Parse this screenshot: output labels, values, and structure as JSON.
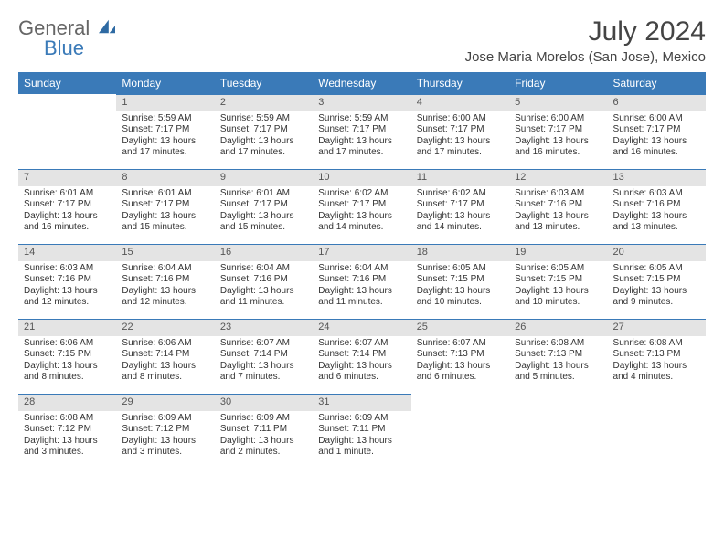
{
  "logo": {
    "part1": "General",
    "part2": "Blue"
  },
  "title": "July 2024",
  "location": "Jose Maria Morelos (San Jose), Mexico",
  "colors": {
    "header_bg": "#3a7ab8",
    "header_text": "#ffffff",
    "daynum_bg": "#e4e4e4",
    "daynum_border": "#3a7ab8",
    "text": "#333333",
    "background": "#ffffff"
  },
  "day_headers": [
    "Sunday",
    "Monday",
    "Tuesday",
    "Wednesday",
    "Thursday",
    "Friday",
    "Saturday"
  ],
  "weeks": [
    [
      null,
      {
        "num": "1",
        "sunrise": "Sunrise: 5:59 AM",
        "sunset": "Sunset: 7:17 PM",
        "daylight": "Daylight: 13 hours and 17 minutes."
      },
      {
        "num": "2",
        "sunrise": "Sunrise: 5:59 AM",
        "sunset": "Sunset: 7:17 PM",
        "daylight": "Daylight: 13 hours and 17 minutes."
      },
      {
        "num": "3",
        "sunrise": "Sunrise: 5:59 AM",
        "sunset": "Sunset: 7:17 PM",
        "daylight": "Daylight: 13 hours and 17 minutes."
      },
      {
        "num": "4",
        "sunrise": "Sunrise: 6:00 AM",
        "sunset": "Sunset: 7:17 PM",
        "daylight": "Daylight: 13 hours and 17 minutes."
      },
      {
        "num": "5",
        "sunrise": "Sunrise: 6:00 AM",
        "sunset": "Sunset: 7:17 PM",
        "daylight": "Daylight: 13 hours and 16 minutes."
      },
      {
        "num": "6",
        "sunrise": "Sunrise: 6:00 AM",
        "sunset": "Sunset: 7:17 PM",
        "daylight": "Daylight: 13 hours and 16 minutes."
      }
    ],
    [
      {
        "num": "7",
        "sunrise": "Sunrise: 6:01 AM",
        "sunset": "Sunset: 7:17 PM",
        "daylight": "Daylight: 13 hours and 16 minutes."
      },
      {
        "num": "8",
        "sunrise": "Sunrise: 6:01 AM",
        "sunset": "Sunset: 7:17 PM",
        "daylight": "Daylight: 13 hours and 15 minutes."
      },
      {
        "num": "9",
        "sunrise": "Sunrise: 6:01 AM",
        "sunset": "Sunset: 7:17 PM",
        "daylight": "Daylight: 13 hours and 15 minutes."
      },
      {
        "num": "10",
        "sunrise": "Sunrise: 6:02 AM",
        "sunset": "Sunset: 7:17 PM",
        "daylight": "Daylight: 13 hours and 14 minutes."
      },
      {
        "num": "11",
        "sunrise": "Sunrise: 6:02 AM",
        "sunset": "Sunset: 7:17 PM",
        "daylight": "Daylight: 13 hours and 14 minutes."
      },
      {
        "num": "12",
        "sunrise": "Sunrise: 6:03 AM",
        "sunset": "Sunset: 7:16 PM",
        "daylight": "Daylight: 13 hours and 13 minutes."
      },
      {
        "num": "13",
        "sunrise": "Sunrise: 6:03 AM",
        "sunset": "Sunset: 7:16 PM",
        "daylight": "Daylight: 13 hours and 13 minutes."
      }
    ],
    [
      {
        "num": "14",
        "sunrise": "Sunrise: 6:03 AM",
        "sunset": "Sunset: 7:16 PM",
        "daylight": "Daylight: 13 hours and 12 minutes."
      },
      {
        "num": "15",
        "sunrise": "Sunrise: 6:04 AM",
        "sunset": "Sunset: 7:16 PM",
        "daylight": "Daylight: 13 hours and 12 minutes."
      },
      {
        "num": "16",
        "sunrise": "Sunrise: 6:04 AM",
        "sunset": "Sunset: 7:16 PM",
        "daylight": "Daylight: 13 hours and 11 minutes."
      },
      {
        "num": "17",
        "sunrise": "Sunrise: 6:04 AM",
        "sunset": "Sunset: 7:16 PM",
        "daylight": "Daylight: 13 hours and 11 minutes."
      },
      {
        "num": "18",
        "sunrise": "Sunrise: 6:05 AM",
        "sunset": "Sunset: 7:15 PM",
        "daylight": "Daylight: 13 hours and 10 minutes."
      },
      {
        "num": "19",
        "sunrise": "Sunrise: 6:05 AM",
        "sunset": "Sunset: 7:15 PM",
        "daylight": "Daylight: 13 hours and 10 minutes."
      },
      {
        "num": "20",
        "sunrise": "Sunrise: 6:05 AM",
        "sunset": "Sunset: 7:15 PM",
        "daylight": "Daylight: 13 hours and 9 minutes."
      }
    ],
    [
      {
        "num": "21",
        "sunrise": "Sunrise: 6:06 AM",
        "sunset": "Sunset: 7:15 PM",
        "daylight": "Daylight: 13 hours and 8 minutes."
      },
      {
        "num": "22",
        "sunrise": "Sunrise: 6:06 AM",
        "sunset": "Sunset: 7:14 PM",
        "daylight": "Daylight: 13 hours and 8 minutes."
      },
      {
        "num": "23",
        "sunrise": "Sunrise: 6:07 AM",
        "sunset": "Sunset: 7:14 PM",
        "daylight": "Daylight: 13 hours and 7 minutes."
      },
      {
        "num": "24",
        "sunrise": "Sunrise: 6:07 AM",
        "sunset": "Sunset: 7:14 PM",
        "daylight": "Daylight: 13 hours and 6 minutes."
      },
      {
        "num": "25",
        "sunrise": "Sunrise: 6:07 AM",
        "sunset": "Sunset: 7:13 PM",
        "daylight": "Daylight: 13 hours and 6 minutes."
      },
      {
        "num": "26",
        "sunrise": "Sunrise: 6:08 AM",
        "sunset": "Sunset: 7:13 PM",
        "daylight": "Daylight: 13 hours and 5 minutes."
      },
      {
        "num": "27",
        "sunrise": "Sunrise: 6:08 AM",
        "sunset": "Sunset: 7:13 PM",
        "daylight": "Daylight: 13 hours and 4 minutes."
      }
    ],
    [
      {
        "num": "28",
        "sunrise": "Sunrise: 6:08 AM",
        "sunset": "Sunset: 7:12 PM",
        "daylight": "Daylight: 13 hours and 3 minutes."
      },
      {
        "num": "29",
        "sunrise": "Sunrise: 6:09 AM",
        "sunset": "Sunset: 7:12 PM",
        "daylight": "Daylight: 13 hours and 3 minutes."
      },
      {
        "num": "30",
        "sunrise": "Sunrise: 6:09 AM",
        "sunset": "Sunset: 7:11 PM",
        "daylight": "Daylight: 13 hours and 2 minutes."
      },
      {
        "num": "31",
        "sunrise": "Sunrise: 6:09 AM",
        "sunset": "Sunset: 7:11 PM",
        "daylight": "Daylight: 13 hours and 1 minute."
      },
      null,
      null,
      null
    ]
  ]
}
